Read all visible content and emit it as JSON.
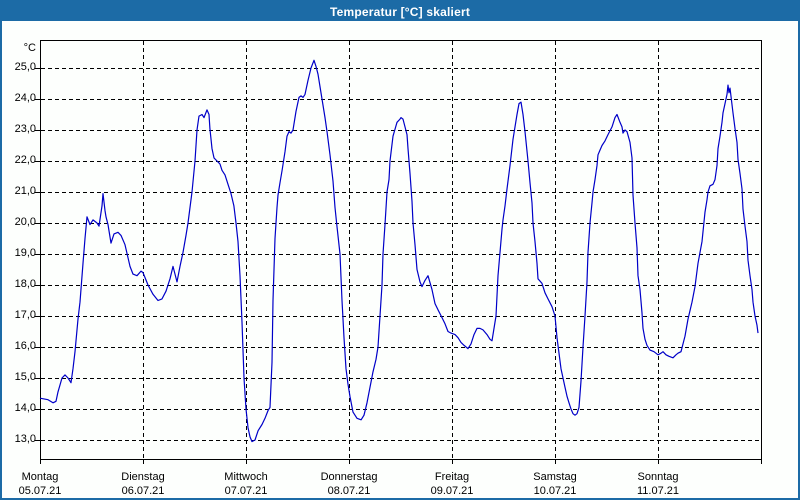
{
  "window": {
    "title": "Temperatur [°C] skaliert"
  },
  "colors": {
    "title_bar": "#1c6ba6",
    "window_border": "#1c6ba6",
    "plot_background": "#fdfffd",
    "grid": "#000000",
    "line": "#0000c8",
    "label_text": "#000000"
  },
  "chart_data": {
    "type": "line",
    "title": "Temperatur [°C] skaliert",
    "ylabel": "°C",
    "xlabel": "",
    "ylim": [
      13.0,
      25.0
    ],
    "ytick_step": 1.0,
    "ytick_labels": [
      "25,0",
      "24,0",
      "23,0",
      "22,0",
      "21,0",
      "20,0",
      "19,0",
      "18,0",
      "17,0",
      "16,0",
      "15,0",
      "14,0",
      "13,0"
    ],
    "grid": "dashed-both-axes",
    "legend_position": "none",
    "x_days": [
      {
        "name": "Montag",
        "date": "05.07.21"
      },
      {
        "name": "Dienstag",
        "date": "06.07.21"
      },
      {
        "name": "Mittwoch",
        "date": "07.07.21"
      },
      {
        "name": "Donnerstag",
        "date": "08.07.21"
      },
      {
        "name": "Freitag",
        "date": "09.07.21"
      },
      {
        "name": "Samstag",
        "date": "10.07.21"
      },
      {
        "name": "Sonntag",
        "date": "11.07.21"
      }
    ],
    "series": [
      {
        "name": "Temperatur",
        "x_unit": "days_since_monday_midnight",
        "points": [
          [
            0,
            14.35
          ],
          [
            0.078,
            14.3
          ],
          [
            0.126,
            14.2
          ],
          [
            0.155,
            14.25
          ],
          [
            0.175,
            14.55
          ],
          [
            0.214,
            15
          ],
          [
            0.243,
            15.1
          ],
          [
            0.272,
            15
          ],
          [
            0.301,
            14.85
          ],
          [
            0.32,
            15.3
          ],
          [
            0.34,
            15.85
          ],
          [
            0.369,
            16.9
          ],
          [
            0.388,
            17.45
          ],
          [
            0.417,
            18.7
          ],
          [
            0.437,
            19.5
          ],
          [
            0.456,
            20.2
          ],
          [
            0.485,
            19.95
          ],
          [
            0.515,
            20.1
          ],
          [
            0.553,
            20
          ],
          [
            0.573,
            19.9
          ],
          [
            0.602,
            20.55
          ],
          [
            0.612,
            20.95
          ],
          [
            0.631,
            20.4
          ],
          [
            0.641,
            20.2
          ],
          [
            0.66,
            19.95
          ],
          [
            0.689,
            19.35
          ],
          [
            0.718,
            19.65
          ],
          [
            0.757,
            19.7
          ],
          [
            0.786,
            19.6
          ],
          [
            0.825,
            19.3
          ],
          [
            0.874,
            18.6
          ],
          [
            0.903,
            18.35
          ],
          [
            0.942,
            18.3
          ],
          [
            0.981,
            18.45
          ],
          [
            1,
            18.4
          ],
          [
            1.049,
            18
          ],
          [
            1.097,
            17.7
          ],
          [
            1.146,
            17.5
          ],
          [
            1.184,
            17.55
          ],
          [
            1.223,
            17.8
          ],
          [
            1.262,
            18.2
          ],
          [
            1.291,
            18.6
          ],
          [
            1.311,
            18.35
          ],
          [
            1.33,
            18.1
          ],
          [
            1.359,
            18.6
          ],
          [
            1.388,
            19.05
          ],
          [
            1.417,
            19.6
          ],
          [
            1.437,
            20
          ],
          [
            1.456,
            20.5
          ],
          [
            1.476,
            21
          ],
          [
            1.505,
            22
          ],
          [
            1.524,
            23
          ],
          [
            1.544,
            23.45
          ],
          [
            1.573,
            23.5
          ],
          [
            1.592,
            23.4
          ],
          [
            1.621,
            23.65
          ],
          [
            1.641,
            23.5
          ],
          [
            1.65,
            23.05
          ],
          [
            1.67,
            22.4
          ],
          [
            1.689,
            22.1
          ],
          [
            1.718,
            22
          ],
          [
            1.748,
            21.9
          ],
          [
            1.767,
            21.7
          ],
          [
            1.796,
            21.55
          ],
          [
            1.825,
            21.25
          ],
          [
            1.854,
            20.95
          ],
          [
            1.883,
            20.55
          ],
          [
            1.903,
            20
          ],
          [
            1.922,
            19.4
          ],
          [
            1.942,
            18.3
          ],
          [
            1.961,
            16.8
          ],
          [
            1.981,
            15
          ],
          [
            2,
            14
          ],
          [
            2.019,
            13.4
          ],
          [
            2.039,
            13.1
          ],
          [
            2.058,
            12.95
          ],
          [
            2.087,
            13
          ],
          [
            2.117,
            13.3
          ],
          [
            2.155,
            13.5
          ],
          [
            2.184,
            13.7
          ],
          [
            2.214,
            13.95
          ],
          [
            2.233,
            14.05
          ],
          [
            2.252,
            15.5
          ],
          [
            2.262,
            17.5
          ],
          [
            2.282,
            19.5
          ],
          [
            2.301,
            20.5
          ],
          [
            2.311,
            20.9
          ],
          [
            2.33,
            21.3
          ],
          [
            2.35,
            21.7
          ],
          [
            2.379,
            22.3
          ],
          [
            2.398,
            22.8
          ],
          [
            2.417,
            22.95
          ],
          [
            2.437,
            22.9
          ],
          [
            2.456,
            23
          ],
          [
            2.485,
            23.6
          ],
          [
            2.515,
            24.05
          ],
          [
            2.534,
            24.1
          ],
          [
            2.553,
            24.05
          ],
          [
            2.573,
            24.15
          ],
          [
            2.602,
            24.6
          ],
          [
            2.631,
            25
          ],
          [
            2.66,
            25.25
          ],
          [
            2.68,
            25.05
          ],
          [
            2.699,
            24.8
          ],
          [
            2.718,
            24.4
          ],
          [
            2.738,
            24
          ],
          [
            2.767,
            23.4
          ],
          [
            2.786,
            22.95
          ],
          [
            2.816,
            22.2
          ],
          [
            2.845,
            21.35
          ],
          [
            2.864,
            20.5
          ],
          [
            2.884,
            19.85
          ],
          [
            2.913,
            19
          ],
          [
            2.932,
            17.5
          ],
          [
            2.951,
            16.3
          ],
          [
            2.971,
            15.3
          ],
          [
            2.99,
            14.8
          ],
          [
            3.01,
            14.4
          ],
          [
            3.039,
            13.9
          ],
          [
            3.078,
            13.7
          ],
          [
            3.117,
            13.65
          ],
          [
            3.146,
            13.8
          ],
          [
            3.175,
            14.2
          ],
          [
            3.204,
            14.7
          ],
          [
            3.233,
            15.2
          ],
          [
            3.262,
            15.6
          ],
          [
            3.282,
            16
          ],
          [
            3.301,
            17
          ],
          [
            3.32,
            18
          ],
          [
            3.33,
            19
          ],
          [
            3.35,
            20
          ],
          [
            3.369,
            21
          ],
          [
            3.388,
            21.4
          ],
          [
            3.398,
            22
          ],
          [
            3.427,
            22.8
          ],
          [
            3.466,
            23.25
          ],
          [
            3.495,
            23.35
          ],
          [
            3.505,
            23.4
          ],
          [
            3.524,
            23.35
          ],
          [
            3.544,
            23.1
          ],
          [
            3.563,
            22.85
          ],
          [
            3.573,
            22.4
          ],
          [
            3.592,
            21.6
          ],
          [
            3.612,
            20.7
          ],
          [
            3.621,
            20
          ],
          [
            3.641,
            19.3
          ],
          [
            3.66,
            18.5
          ],
          [
            3.689,
            18.1
          ],
          [
            3.709,
            17.95
          ],
          [
            3.738,
            18.15
          ],
          [
            3.767,
            18.3
          ],
          [
            3.806,
            17.85
          ],
          [
            3.835,
            17.4
          ],
          [
            3.864,
            17.2
          ],
          [
            3.903,
            16.95
          ],
          [
            3.932,
            16.75
          ],
          [
            3.961,
            16.5
          ],
          [
            3.99,
            16.45
          ],
          [
            4.029,
            16.4
          ],
          [
            4.058,
            16.3
          ],
          [
            4.087,
            16.15
          ],
          [
            4.117,
            16.05
          ],
          [
            4.155,
            15.95
          ],
          [
            4.184,
            16.1
          ],
          [
            4.214,
            16.4
          ],
          [
            4.243,
            16.6
          ],
          [
            4.272,
            16.6
          ],
          [
            4.301,
            16.55
          ],
          [
            4.34,
            16.4
          ],
          [
            4.369,
            16.25
          ],
          [
            4.388,
            16.2
          ],
          [
            4.408,
            16.6
          ],
          [
            4.427,
            17
          ],
          [
            4.447,
            18.3
          ],
          [
            4.466,
            19.05
          ],
          [
            4.485,
            19.8
          ],
          [
            4.495,
            20.1
          ],
          [
            4.515,
            20.55
          ],
          [
            4.534,
            21.1
          ],
          [
            4.563,
            21.85
          ],
          [
            4.592,
            22.7
          ],
          [
            4.631,
            23.5
          ],
          [
            4.65,
            23.85
          ],
          [
            4.67,
            23.9
          ],
          [
            4.689,
            23.5
          ],
          [
            4.709,
            22.95
          ],
          [
            4.738,
            22
          ],
          [
            4.757,
            21.3
          ],
          [
            4.777,
            20.65
          ],
          [
            4.786,
            20
          ],
          [
            4.806,
            19.4
          ],
          [
            4.825,
            18.7
          ],
          [
            4.835,
            18.2
          ],
          [
            4.874,
            18.05
          ],
          [
            4.903,
            17.75
          ],
          [
            4.932,
            17.55
          ],
          [
            4.971,
            17.3
          ],
          [
            5,
            17
          ],
          [
            5.019,
            16.3
          ],
          [
            5.039,
            15.8
          ],
          [
            5.058,
            15.3
          ],
          [
            5.078,
            15
          ],
          [
            5.097,
            14.7
          ],
          [
            5.117,
            14.4
          ],
          [
            5.136,
            14.2
          ],
          [
            5.155,
            14
          ],
          [
            5.175,
            13.85
          ],
          [
            5.194,
            13.8
          ],
          [
            5.214,
            13.85
          ],
          [
            5.233,
            14.05
          ],
          [
            5.252,
            14.9
          ],
          [
            5.272,
            16
          ],
          [
            5.291,
            17
          ],
          [
            5.311,
            18.1
          ],
          [
            5.32,
            19.05
          ],
          [
            5.34,
            20
          ],
          [
            5.359,
            20.65
          ],
          [
            5.369,
            21
          ],
          [
            5.388,
            21.4
          ],
          [
            5.408,
            21.85
          ],
          [
            5.417,
            22.2
          ],
          [
            5.437,
            22.35
          ],
          [
            5.456,
            22.5
          ],
          [
            5.485,
            22.65
          ],
          [
            5.515,
            22.85
          ],
          [
            5.553,
            23.1
          ],
          [
            5.583,
            23.4
          ],
          [
            5.602,
            23.5
          ],
          [
            5.631,
            23.25
          ],
          [
            5.65,
            23.1
          ],
          [
            5.66,
            22.9
          ],
          [
            5.68,
            23
          ],
          [
            5.699,
            22.95
          ],
          [
            5.728,
            22.6
          ],
          [
            5.748,
            22.1
          ],
          [
            5.757,
            20.9
          ],
          [
            5.777,
            20
          ],
          [
            5.796,
            19.2
          ],
          [
            5.806,
            18.3
          ],
          [
            5.825,
            17.85
          ],
          [
            5.845,
            17.1
          ],
          [
            5.854,
            16.6
          ],
          [
            5.874,
            16.25
          ],
          [
            5.893,
            16.05
          ],
          [
            5.922,
            15.9
          ],
          [
            5.961,
            15.85
          ],
          [
            6,
            15.75
          ],
          [
            6.029,
            15.8
          ],
          [
            6.049,
            15.85
          ],
          [
            6.078,
            15.75
          ],
          [
            6.107,
            15.7
          ],
          [
            6.146,
            15.65
          ],
          [
            6.175,
            15.75
          ],
          [
            6.194,
            15.8
          ],
          [
            6.223,
            15.85
          ],
          [
            6.262,
            16.35
          ],
          [
            6.291,
            16.9
          ],
          [
            6.33,
            17.45
          ],
          [
            6.359,
            17.95
          ],
          [
            6.388,
            18.7
          ],
          [
            6.427,
            19.4
          ],
          [
            6.456,
            20.35
          ],
          [
            6.476,
            20.75
          ],
          [
            6.485,
            21
          ],
          [
            6.505,
            21.2
          ],
          [
            6.534,
            21.25
          ],
          [
            6.553,
            21.4
          ],
          [
            6.573,
            21.85
          ],
          [
            6.583,
            22.4
          ],
          [
            6.602,
            22.8
          ],
          [
            6.621,
            23.25
          ],
          [
            6.631,
            23.55
          ],
          [
            6.65,
            23.85
          ],
          [
            6.67,
            24.15
          ],
          [
            6.68,
            24.45
          ],
          [
            6.689,
            24.2
          ],
          [
            6.699,
            24.35
          ],
          [
            6.728,
            23.55
          ],
          [
            6.748,
            23.05
          ],
          [
            6.767,
            22.6
          ],
          [
            6.777,
            22.05
          ],
          [
            6.796,
            21.6
          ],
          [
            6.816,
            21.1
          ],
          [
            6.825,
            20.45
          ],
          [
            6.845,
            19.9
          ],
          [
            6.864,
            19.4
          ],
          [
            6.874,
            18.8
          ],
          [
            6.893,
            18.3
          ],
          [
            6.913,
            17.85
          ],
          [
            6.922,
            17.45
          ],
          [
            6.942,
            17
          ],
          [
            6.961,
            16.7
          ],
          [
            6.971,
            16.45
          ]
        ]
      }
    ]
  }
}
